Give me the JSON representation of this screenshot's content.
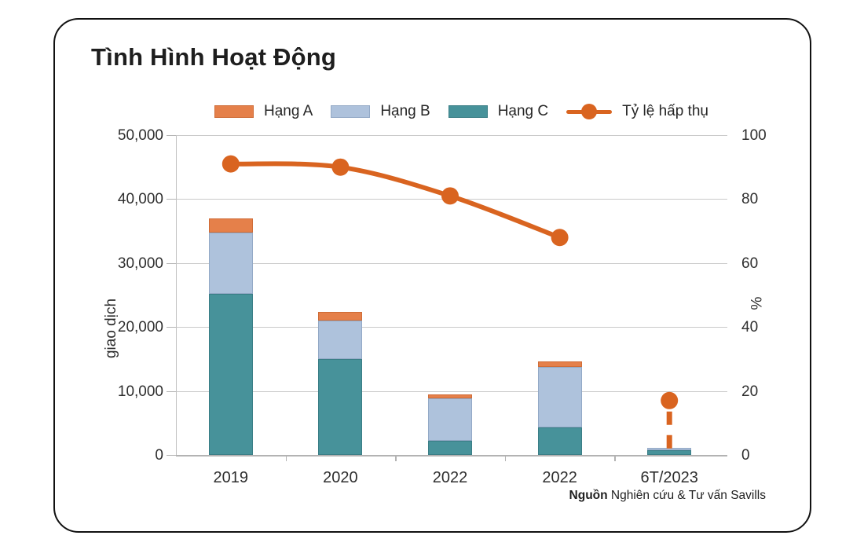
{
  "chart_data": {
    "type": "combo",
    "subtype": "stacked-bar-with-line",
    "title": "Tình Hình Hoạt Động",
    "categories": [
      "2019",
      "2020",
      "2022",
      "2022",
      "6T/2023"
    ],
    "series": [
      {
        "name": "Hạng A",
        "type": "bar",
        "color": "#e5804a",
        "border": "#cf6c37",
        "values": [
          2200,
          1400,
          500,
          800,
          0
        ]
      },
      {
        "name": "Hạng B",
        "type": "bar",
        "color": "#aec2dc",
        "border": "#93a9c6",
        "values": [
          9600,
          6000,
          6700,
          9500,
          400
        ]
      },
      {
        "name": "Hạng C",
        "type": "bar",
        "color": "#47929a",
        "border": "#3a7e86",
        "values": [
          25200,
          15000,
          2200,
          4300,
          700
        ]
      },
      {
        "name": "Tỷ lệ hấp thụ",
        "type": "line",
        "axis": "right",
        "color": "#d96420",
        "values": [
          91,
          90,
          81,
          68,
          17
        ],
        "detached_last_point": true,
        "dashed_drop_on_last": true
      }
    ],
    "stack_order_bottom_to_top": [
      "Hạng C",
      "Hạng B",
      "Hạng A"
    ],
    "left_axis": {
      "label": "giao dịch",
      "min": 0,
      "max": 50000,
      "step": 10000,
      "ticks": [
        "0",
        "10,000",
        "20,000",
        "30,000",
        "40,000",
        "50,000"
      ]
    },
    "right_axis": {
      "label": "%",
      "min": 0,
      "max": 100,
      "step": 20,
      "ticks": [
        "0",
        "20",
        "40",
        "60",
        "80",
        "100"
      ]
    },
    "legend": [
      "Hạng A",
      "Hạng B",
      "Hạng C",
      "Tỷ lệ hấp thụ"
    ],
    "legend_position": "top",
    "grid": "horizontal",
    "source_bold": "Nguồn",
    "source_rest": " Nghiên cứu & Tư vấn Savills",
    "colors": {
      "grid": "#c9c9c9",
      "axis": "#b3b3b3",
      "text": "#2e2e2e",
      "line_accent": "#d96420"
    }
  }
}
